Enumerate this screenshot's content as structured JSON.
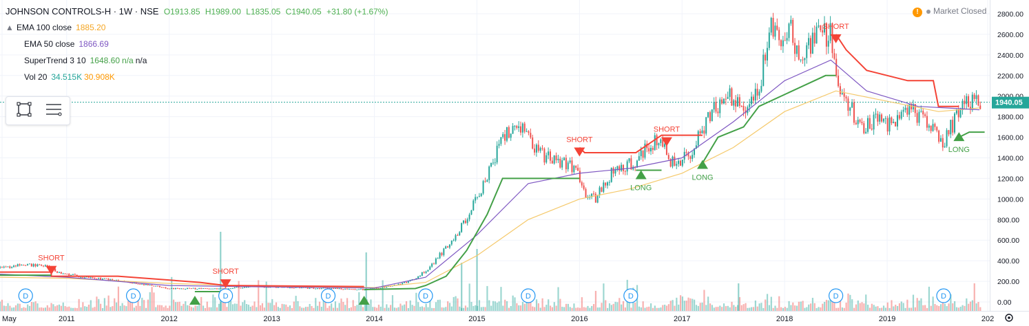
{
  "header": {
    "symbol": "JOHNSON CONTROLS-H · 1W · NSE",
    "open": "O1913.85",
    "high": "H1989.00",
    "low": "L1835.05",
    "close": "C1940.05",
    "change": "+31.80 (+1.67%)"
  },
  "legend": [
    {
      "label": "EMA 100 close",
      "values": [
        "1885.20"
      ],
      "colors": [
        "#f5a623"
      ]
    },
    {
      "label": "EMA 50 close",
      "values": [
        "1866.69"
      ],
      "colors": [
        "#7e57c2"
      ]
    },
    {
      "label": "SuperTrend 3 10",
      "values": [
        "1648.60",
        "n/a",
        "n/a"
      ],
      "colors": [
        "#43a047",
        "#43a047",
        "#131722"
      ]
    },
    {
      "label": "Vol 20",
      "values": [
        "34.515K",
        "30.908K"
      ],
      "colors": [
        "#26a69a",
        "#ff9800"
      ]
    }
  ],
  "legend_toggle_icon": "chevron-up-icon",
  "toolbar": {
    "tools": [
      "object-tree-icon",
      "indicators-list-icon"
    ]
  },
  "market_status": {
    "text": "Market Closed",
    "icon": "warning-icon"
  },
  "price_label": "1940.05",
  "colors": {
    "up": "#26a69a",
    "down": "#ef5350",
    "supertrend_up": "#43a047",
    "supertrend_down": "#f44336",
    "ema100": "#f5c96b",
    "ema50": "#7e57c2",
    "grid": "#f0f3fa"
  },
  "chart_data": {
    "type": "candlestick",
    "y_ticks": [
      "2800.00",
      "2600.00",
      "2400.00",
      "2200.00",
      "2000.00",
      "1800.00",
      "1600.00",
      "1400.00",
      "1200.00",
      "1000.00",
      "800.00",
      "600.00",
      "400.00",
      "200.00",
      "0.00"
    ],
    "ylim": [
      0,
      2800
    ],
    "x_ticks": [
      "May",
      "2011",
      "2012",
      "2013",
      "2014",
      "2015",
      "2016",
      "2017",
      "2018",
      "2019",
      "202"
    ],
    "xlim": [
      2010.35,
      2020.0
    ],
    "price_path": [
      [
        2010.35,
        330
      ],
      [
        2010.6,
        360
      ],
      [
        2010.8,
        350
      ],
      [
        2010.95,
        270
      ],
      [
        2011.3,
        230
      ],
      [
        2011.7,
        180
      ],
      [
        2012.0,
        130
      ],
      [
        2012.5,
        130
      ],
      [
        2012.8,
        150
      ],
      [
        2013.2,
        140
      ],
      [
        2013.6,
        130
      ],
      [
        2013.9,
        120
      ],
      [
        2014.2,
        160
      ],
      [
        2014.4,
        220
      ],
      [
        2014.55,
        350
      ],
      [
        2014.8,
        650
      ],
      [
        2015.0,
        1000
      ],
      [
        2015.15,
        1350
      ],
      [
        2015.25,
        1600
      ],
      [
        2015.45,
        1700
      ],
      [
        2015.6,
        1450
      ],
      [
        2015.8,
        1350
      ],
      [
        2015.95,
        1300
      ],
      [
        2016.05,
        1050
      ],
      [
        2016.15,
        1000
      ],
      [
        2016.35,
        1300
      ],
      [
        2016.55,
        1350
      ],
      [
        2016.7,
        1550
      ],
      [
        2016.8,
        1550
      ],
      [
        2016.9,
        1350
      ],
      [
        2017.0,
        1400
      ],
      [
        2017.1,
        1450
      ],
      [
        2017.25,
        1800
      ],
      [
        2017.45,
        2000
      ],
      [
        2017.65,
        1900
      ],
      [
        2017.75,
        2050
      ],
      [
        2017.85,
        2650
      ],
      [
        2017.95,
        2600
      ],
      [
        2018.05,
        2650
      ],
      [
        2018.15,
        2350
      ],
      [
        2018.3,
        2550
      ],
      [
        2018.45,
        2600
      ],
      [
        2018.5,
        2150
      ],
      [
        2018.6,
        1950
      ],
      [
        2018.75,
        1700
      ],
      [
        2018.9,
        1750
      ],
      [
        2019.05,
        1700
      ],
      [
        2019.15,
        1950
      ],
      [
        2019.3,
        1800
      ],
      [
        2019.45,
        1700
      ],
      [
        2019.55,
        1550
      ],
      [
        2019.65,
        1750
      ],
      [
        2019.75,
        2000
      ],
      [
        2019.85,
        1950
      ],
      [
        2019.9,
        1940
      ]
    ],
    "series": [
      {
        "name": "EMA 100 close",
        "points": [
          [
            2010.35,
            240
          ],
          [
            2011.0,
            230
          ],
          [
            2012.0,
            180
          ],
          [
            2013.0,
            150
          ],
          [
            2014.0,
            140
          ],
          [
            2014.5,
            190
          ],
          [
            2015.0,
            450
          ],
          [
            2015.5,
            800
          ],
          [
            2016.0,
            1000
          ],
          [
            2016.5,
            1100
          ],
          [
            2017.0,
            1250
          ],
          [
            2017.5,
            1500
          ],
          [
            2018.0,
            1850
          ],
          [
            2018.5,
            2050
          ],
          [
            2019.0,
            1950
          ],
          [
            2019.5,
            1850
          ],
          [
            2019.9,
            1885
          ]
        ]
      },
      {
        "name": "EMA 50 close",
        "points": [
          [
            2010.35,
            270
          ],
          [
            2011.0,
            240
          ],
          [
            2012.0,
            160
          ],
          [
            2013.0,
            145
          ],
          [
            2014.0,
            135
          ],
          [
            2014.5,
            240
          ],
          [
            2015.0,
            650
          ],
          [
            2015.5,
            1150
          ],
          [
            2016.0,
            1250
          ],
          [
            2016.5,
            1300
          ],
          [
            2017.0,
            1400
          ],
          [
            2017.5,
            1750
          ],
          [
            2018.0,
            2150
          ],
          [
            2018.45,
            2350
          ],
          [
            2018.8,
            2050
          ],
          [
            2019.3,
            1900
          ],
          [
            2019.9,
            1867
          ]
        ]
      },
      {
        "name": "SuperTrend 3 10",
        "segments": [
          {
            "trend": "down",
            "points": [
              [
                2010.35,
                290
              ],
              [
                2010.85,
                290
              ],
              [
                2010.85,
                250
              ],
              [
                2011.5,
                250
              ],
              [
                2012.3,
                190
              ],
              [
                2012.55,
                160
              ],
              [
                2013.9,
                150
              ]
            ]
          },
          {
            "trend": "up",
            "points": [
              [
                2010.35,
                260
              ],
              [
                2010.85,
                260
              ]
            ]
          },
          {
            "trend": "up",
            "points": [
              [
                2012.25,
                100
              ],
              [
                2012.55,
                100
              ]
            ]
          },
          {
            "trend": "up",
            "points": [
              [
                2013.9,
                120
              ],
              [
                2014.4,
                130
              ],
              [
                2014.5,
                160
              ],
              [
                2014.7,
                250
              ],
              [
                2014.9,
                500
              ],
              [
                2015.1,
                850
              ],
              [
                2015.25,
                1200
              ],
              [
                2016.0,
                1200
              ]
            ]
          },
          {
            "trend": "down",
            "points": [
              [
                2016.0,
                1500
              ],
              [
                2016.05,
                1450
              ],
              [
                2016.55,
                1450
              ],
              [
                2016.8,
                1620
              ],
              [
                2017.2,
                1620
              ]
            ]
          },
          {
            "trend": "up",
            "points": [
              [
                2016.55,
                1280
              ],
              [
                2016.8,
                1280
              ]
            ]
          },
          {
            "trend": "up",
            "points": [
              [
                2017.2,
                1350
              ],
              [
                2017.35,
                1600
              ],
              [
                2017.6,
                1700
              ],
              [
                2017.75,
                1900
              ],
              [
                2018.4,
                2200
              ],
              [
                2018.5,
                2200
              ]
            ]
          },
          {
            "trend": "down",
            "points": [
              [
                2018.5,
                2600
              ],
              [
                2018.6,
                2450
              ],
              [
                2018.8,
                2250
              ],
              [
                2019.2,
                2150
              ],
              [
                2019.45,
                2150
              ],
              [
                2019.5,
                1900
              ],
              [
                2019.7,
                1900
              ]
            ]
          },
          {
            "trend": "up",
            "points": [
              [
                2019.7,
                1600
              ],
              [
                2019.8,
                1650
              ],
              [
                2019.95,
                1650
              ]
            ]
          }
        ]
      }
    ],
    "signals": [
      {
        "label": "SHORT",
        "x": 2010.85,
        "y": 350,
        "type": "short"
      },
      {
        "label": "",
        "x": 2012.25,
        "y": 60,
        "type": "long"
      },
      {
        "label": "SHORT",
        "x": 2012.55,
        "y": 220,
        "type": "short"
      },
      {
        "label": "",
        "x": 2013.9,
        "y": 60,
        "type": "long"
      },
      {
        "label": "SHORT",
        "x": 2016.0,
        "y": 1500,
        "type": "short"
      },
      {
        "label": "LONG",
        "x": 2016.6,
        "y": 1280,
        "type": "long"
      },
      {
        "label": "SHORT",
        "x": 2016.85,
        "y": 1600,
        "type": "short"
      },
      {
        "label": "LONG",
        "x": 2017.2,
        "y": 1380,
        "type": "long"
      },
      {
        "label": "SHORT",
        "x": 2018.5,
        "y": 2600,
        "type": "short"
      },
      {
        "label": "LONG",
        "x": 2019.7,
        "y": 1650,
        "type": "long"
      }
    ],
    "dividends": [
      2010.6,
      2011.65,
      2012.55,
      2013.55,
      2014.5,
      2015.5,
      2016.5,
      2018.5,
      2019.55
    ]
  }
}
